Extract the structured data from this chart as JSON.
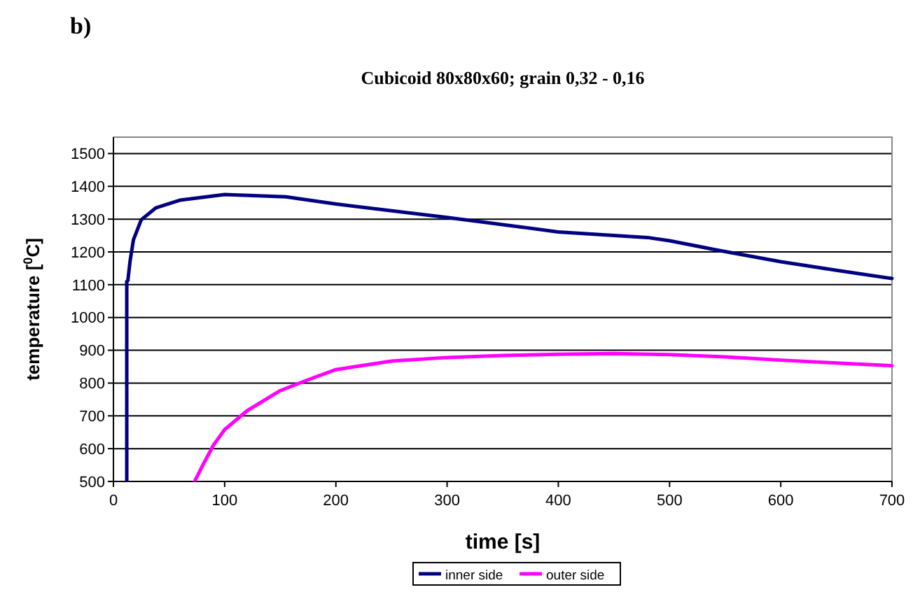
{
  "chart_data": {
    "type": "line",
    "title": "Cubicoid 80x80x60; grain 0,32 - 0,16",
    "annotations": [
      "b)"
    ],
    "xlabel": "time [s]",
    "ylabel": "temperature [$^{0}$C]",
    "xlim": [
      0,
      700
    ],
    "xticks": [
      0,
      100,
      200,
      300,
      400,
      500,
      600,
      700
    ],
    "ylim": [
      500,
      1550
    ],
    "yticks": [
      500,
      600,
      700,
      800,
      900,
      1000,
      1100,
      1200,
      1300,
      1400,
      1500
    ],
    "grid": "y",
    "legend": "bottom",
    "line_style": "solid",
    "marker": "none",
    "series": [
      {
        "name": "inner side",
        "color": "#000080",
        "x": [
          12,
          12,
          13,
          15,
          18,
          25,
          38,
          60,
          100,
          155,
          200,
          300,
          400,
          450,
          480,
          500,
          550,
          600,
          650,
          700
        ],
        "values": [
          500,
          1110,
          1113,
          1173,
          1237,
          1298,
          1334,
          1358,
          1375,
          1368,
          1346,
          1305,
          1261,
          1250,
          1244,
          1234,
          1201,
          1170,
          1144,
          1119
        ]
      },
      {
        "name": "outer side",
        "color": "#ff00ff",
        "x": [
          73,
          80,
          90,
          100,
          120,
          150,
          175,
          200,
          250,
          300,
          350,
          400,
          450,
          500,
          550,
          600,
          650,
          700
        ],
        "values": [
          500,
          547,
          611,
          658,
          715,
          777,
          810,
          841,
          867,
          878,
          884,
          888,
          890,
          887,
          880,
          870,
          861,
          853
        ]
      }
    ]
  }
}
